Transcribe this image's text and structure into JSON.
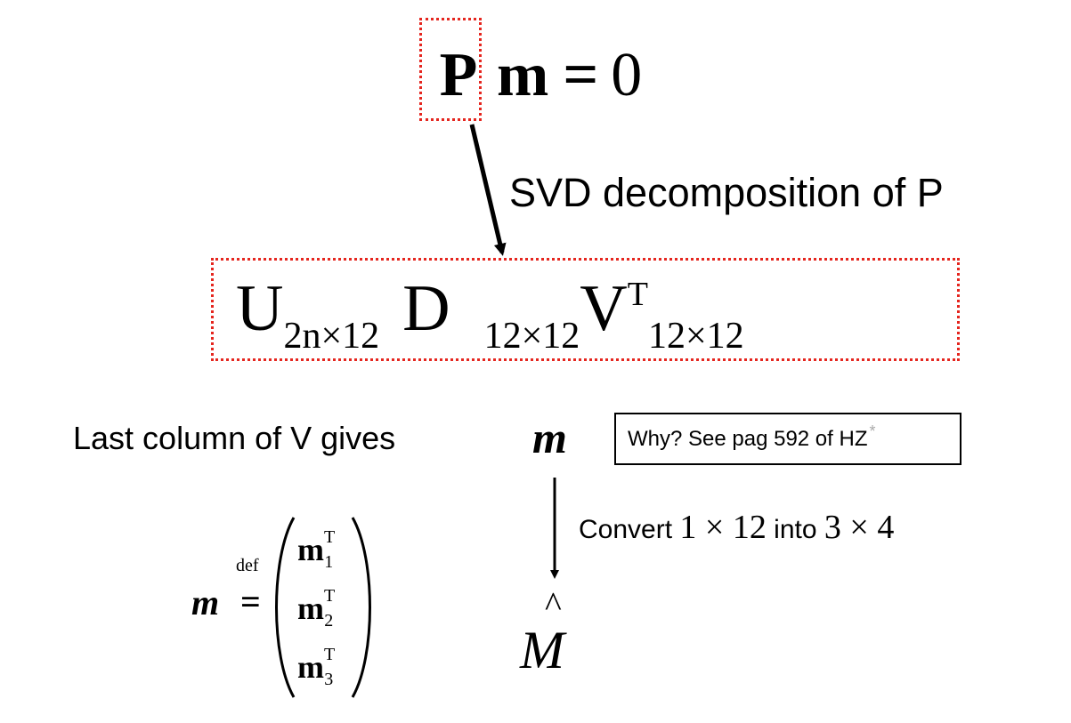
{
  "top_equation": {
    "p": "P",
    "m": "m",
    "equals": "=",
    "zero": "0"
  },
  "svd_label": "SVD decomposition of P",
  "svd_equation": {
    "u": "U",
    "u_sub": "2n×12",
    "d": "D",
    "d_sub": "12×12",
    "v": "V",
    "v_sup": "T",
    "v_sub": "12×12"
  },
  "last_column_text": "Last column of V gives",
  "m_symbol": "m",
  "why_note": {
    "text": "Why? See pag 592 of HZ",
    "star": "*"
  },
  "convert": {
    "word": "Convert",
    "from": "1 × 12",
    "into": "into",
    "to": "3 × 4"
  },
  "m_hat": {
    "letter": "M",
    "hat": "^"
  },
  "definition": {
    "lhs": "m",
    "def_word": "def",
    "equals": "=",
    "rows": [
      {
        "base": "m",
        "sup": "T",
        "sub": "1"
      },
      {
        "base": "m",
        "sup": "T",
        "sub": "2"
      },
      {
        "base": "m",
        "sup": "T",
        "sub": "3"
      }
    ]
  },
  "colors": {
    "highlight_box": "#e5261f",
    "star": "#aaaaaa"
  }
}
